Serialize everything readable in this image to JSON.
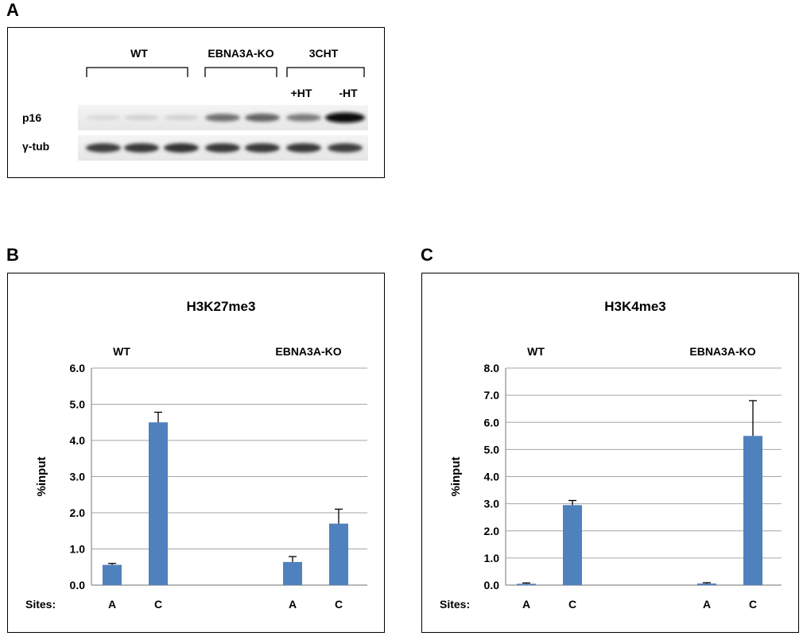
{
  "panel_a": {
    "letter": "A",
    "groups": [
      {
        "label": "WT"
      },
      {
        "label": "EBNA3A-KO"
      },
      {
        "label": "3CHT"
      }
    ],
    "subgroups": [
      "+HT",
      "-HT"
    ],
    "rows": [
      "p16",
      "γ-tub"
    ],
    "p16_intensity": [
      0.08,
      0.12,
      0.12,
      0.55,
      0.6,
      0.5,
      1.0
    ],
    "gtub_intensity": [
      0.78,
      0.8,
      0.82,
      0.8,
      0.8,
      0.8,
      0.78
    ]
  },
  "panel_b": {
    "letter": "B",
    "chart_data": {
      "type": "bar",
      "title": "H3K27me3",
      "ylabel": "%input",
      "ylim": [
        0,
        6
      ],
      "yticks": [
        "0.0",
        "1.0",
        "2.0",
        "3.0",
        "4.0",
        "5.0",
        "6.0"
      ],
      "groups": [
        "WT",
        "EBNA3A-KO"
      ],
      "sites_label": "Sites:",
      "categories": [
        "A",
        "C",
        "A",
        "C"
      ],
      "values": [
        0.56,
        4.5,
        0.64,
        1.7
      ],
      "errors": [
        0.04,
        0.28,
        0.15,
        0.4
      ],
      "color": "#4f81bd"
    }
  },
  "panel_c": {
    "letter": "C",
    "chart_data": {
      "type": "bar",
      "title": "H3K4me3",
      "ylabel": "%input",
      "ylim": [
        0,
        8
      ],
      "yticks": [
        "0.0",
        "1.0",
        "2.0",
        "3.0",
        "4.0",
        "5.0",
        "6.0",
        "7.0",
        "8.0"
      ],
      "groups": [
        "WT",
        "EBNA3A-KO"
      ],
      "sites_label": "Sites:",
      "categories": [
        "A",
        "C",
        "A",
        "C"
      ],
      "values": [
        0.05,
        2.95,
        0.06,
        5.5
      ],
      "errors": [
        0.03,
        0.17,
        0.03,
        1.3
      ],
      "color": "#4f81bd"
    }
  }
}
